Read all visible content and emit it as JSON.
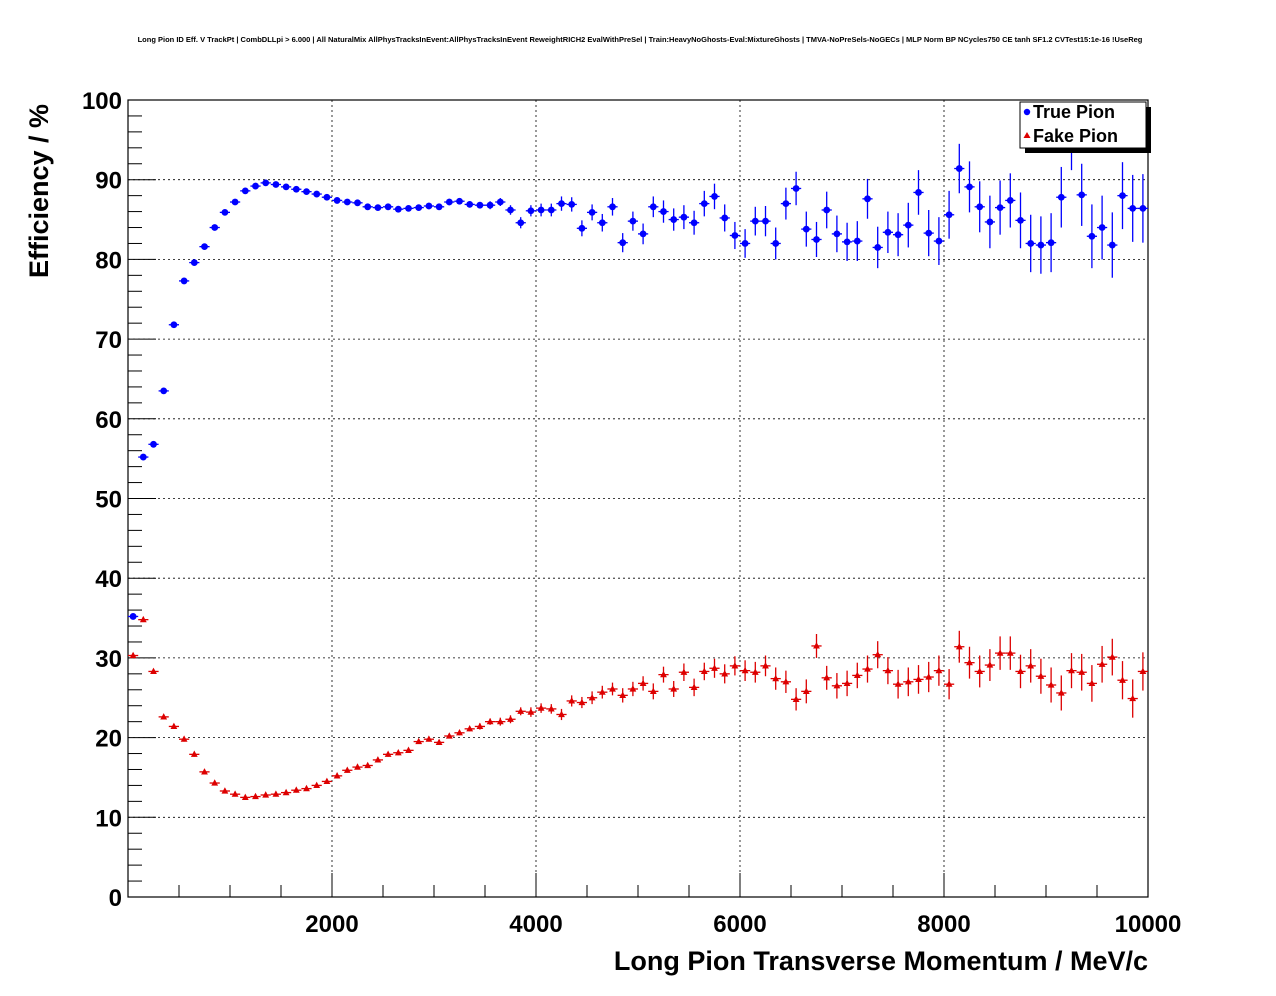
{
  "chart_data": {
    "type": "scatter",
    "title": "Long Pion ID Eff. V TrackPt | CombDLLpi > 6.000 | All NaturalMix AllPhysTracksInEvent:AllPhysTracksInEvent ReweightRICH2 EvalWithPreSel | Train:HeavyNoGhosts-Eval:MixtureGhosts | TMVA-NoPreSels-NoGECs | MLP Norm BP NCycles750 CE tanh SF1.2 CVTest15:1e-16 !UseReg",
    "xlabel": "Long Pion Transverse Momentum / MeV/c",
    "ylabel": "Efficiency / %",
    "xlim": [
      0,
      10000
    ],
    "ylim": [
      0,
      100
    ],
    "xticks": [
      2000,
      4000,
      6000,
      8000,
      10000
    ],
    "yticks": [
      0,
      10,
      20,
      30,
      40,
      50,
      60,
      70,
      80,
      90,
      100
    ],
    "grid": true,
    "legend_position": "top-right",
    "series": [
      {
        "name": "True Pion",
        "color": "#0000ff",
        "marker": "circle",
        "x": [
          50,
          150,
          250,
          350,
          450,
          550,
          650,
          750,
          850,
          950,
          1050,
          1150,
          1250,
          1350,
          1450,
          1550,
          1650,
          1750,
          1850,
          1950,
          2050,
          2150,
          2250,
          2350,
          2450,
          2550,
          2650,
          2750,
          2850,
          2950,
          3050,
          3150,
          3250,
          3350,
          3450,
          3550,
          3650,
          3750,
          3850,
          3950,
          4050,
          4150,
          4250,
          4350,
          4450,
          4550,
          4650,
          4750,
          4850,
          4950,
          5050,
          5150,
          5250,
          5350,
          5450,
          5550,
          5650,
          5750,
          5850,
          5950,
          6050,
          6150,
          6250,
          6350,
          6450,
          6550,
          6650,
          6750,
          6850,
          6950,
          7050,
          7150,
          7250,
          7350,
          7450,
          7550,
          7650,
          7750,
          7850,
          7950,
          8050,
          8150,
          8250,
          8350,
          8450,
          8550,
          8650,
          8750,
          8850,
          8950,
          9050,
          9150,
          9250,
          9350,
          9450,
          9550,
          9650,
          9750,
          9850,
          9950
        ],
        "y": [
          35.2,
          55.2,
          56.8,
          63.5,
          71.8,
          77.3,
          79.6,
          81.6,
          84.0,
          85.9,
          87.2,
          88.6,
          89.2,
          89.6,
          89.4,
          89.1,
          88.8,
          88.5,
          88.2,
          87.8,
          87.4,
          87.2,
          87.1,
          86.6,
          86.5,
          86.6,
          86.3,
          86.4,
          86.5,
          86.7,
          86.6,
          87.2,
          87.3,
          86.9,
          86.8,
          86.8,
          87.2,
          86.2,
          84.6,
          86.1,
          86.2,
          86.2,
          87.0,
          86.9,
          83.9,
          85.9,
          84.6,
          86.6,
          82.1,
          84.8,
          83.2,
          86.6,
          86.0,
          85.0,
          85.3,
          84.6,
          87.0,
          87.9,
          85.2,
          83.0,
          82.0,
          84.8,
          84.8,
          82.0,
          87.0,
          88.9,
          83.8,
          82.5,
          86.2,
          83.2,
          82.2,
          82.3,
          87.6,
          81.5,
          83.4,
          83.1,
          84.3,
          88.4,
          83.3,
          82.3,
          85.6,
          91.4,
          89.1,
          86.6,
          84.7,
          86.5,
          87.4,
          84.9,
          82.0,
          81.8,
          82.1,
          87.8,
          95.0,
          88.1,
          82.9,
          84.0,
          81.8,
          88.0,
          86.4,
          86.4
        ],
        "yerr": [
          0.3,
          0.3,
          0.3,
          0.3,
          0.3,
          0.3,
          0.3,
          0.3,
          0.3,
          0.3,
          0.3,
          0.3,
          0.3,
          0.3,
          0.3,
          0.3,
          0.3,
          0.3,
          0.3,
          0.3,
          0.3,
          0.3,
          0.3,
          0.3,
          0.3,
          0.3,
          0.3,
          0.3,
          0.3,
          0.4,
          0.4,
          0.4,
          0.4,
          0.4,
          0.4,
          0.5,
          0.5,
          0.6,
          0.7,
          0.7,
          0.8,
          0.8,
          0.9,
          0.9,
          1.0,
          1.0,
          1.1,
          1.1,
          1.2,
          1.2,
          1.3,
          1.3,
          1.4,
          1.4,
          1.5,
          1.5,
          1.6,
          1.6,
          1.7,
          1.7,
          1.8,
          1.8,
          1.9,
          2.0,
          2.0,
          2.1,
          2.2,
          2.2,
          2.3,
          2.3,
          2.4,
          2.5,
          2.5,
          2.6,
          2.6,
          2.7,
          2.8,
          2.8,
          2.9,
          3.0,
          3.0,
          3.1,
          3.2,
          3.2,
          3.3,
          3.4,
          3.4,
          3.5,
          3.6,
          3.6,
          3.7,
          3.8,
          3.8,
          3.9,
          4.0,
          4.0,
          4.1,
          4.2,
          4.2,
          4.3
        ]
      },
      {
        "name": "Fake Pion",
        "color": "#dd0000",
        "marker": "triangle",
        "x": [
          50,
          150,
          250,
          350,
          450,
          550,
          650,
          750,
          850,
          950,
          1050,
          1150,
          1250,
          1350,
          1450,
          1550,
          1650,
          1750,
          1850,
          1950,
          2050,
          2150,
          2250,
          2350,
          2450,
          2550,
          2650,
          2750,
          2850,
          2950,
          3050,
          3150,
          3250,
          3350,
          3450,
          3550,
          3650,
          3750,
          3850,
          3950,
          4050,
          4150,
          4250,
          4350,
          4450,
          4550,
          4650,
          4750,
          4850,
          4950,
          5050,
          5150,
          5250,
          5350,
          5450,
          5550,
          5650,
          5750,
          5850,
          5950,
          6050,
          6150,
          6250,
          6350,
          6450,
          6550,
          6650,
          6750,
          6850,
          6950,
          7050,
          7150,
          7250,
          7350,
          7450,
          7550,
          7650,
          7750,
          7850,
          7950,
          8050,
          8150,
          8250,
          8350,
          8450,
          8550,
          8650,
          8750,
          8850,
          8950,
          9050,
          9150,
          9250,
          9350,
          9450,
          9550,
          9650,
          9750,
          9850,
          9950
        ],
        "y": [
          30.3,
          34.8,
          28.3,
          22.6,
          21.4,
          19.8,
          17.9,
          15.7,
          14.3,
          13.3,
          12.9,
          12.5,
          12.6,
          12.8,
          12.9,
          13.1,
          13.4,
          13.6,
          14.0,
          14.5,
          15.2,
          15.9,
          16.3,
          16.5,
          17.2,
          17.9,
          18.1,
          18.4,
          19.5,
          19.8,
          19.4,
          20.2,
          20.6,
          21.1,
          21.4,
          22.0,
          22.0,
          22.3,
          23.3,
          23.2,
          23.7,
          23.6,
          22.9,
          24.6,
          24.4,
          25.0,
          25.7,
          26.1,
          25.3,
          26.1,
          26.8,
          25.8,
          27.9,
          26.1,
          28.2,
          26.3,
          28.3,
          28.7,
          28.0,
          29.0,
          28.4,
          28.2,
          29.0,
          27.4,
          27.0,
          24.8,
          25.8,
          31.5,
          27.5,
          26.5,
          26.8,
          27.8,
          28.6,
          30.4,
          28.4,
          26.7,
          27.0,
          27.3,
          27.6,
          28.4,
          26.7,
          31.4,
          29.4,
          28.3,
          29.1,
          30.6,
          30.6,
          28.3,
          29.0,
          27.7,
          26.6,
          25.6,
          28.4,
          28.2,
          26.8,
          29.2,
          30.1,
          27.2,
          24.9,
          28.3
        ],
        "yerr": [
          0.3,
          0.3,
          0.3,
          0.3,
          0.3,
          0.3,
          0.3,
          0.3,
          0.3,
          0.3,
          0.3,
          0.3,
          0.3,
          0.3,
          0.3,
          0.3,
          0.3,
          0.3,
          0.3,
          0.3,
          0.3,
          0.3,
          0.3,
          0.3,
          0.3,
          0.3,
          0.3,
          0.3,
          0.3,
          0.3,
          0.3,
          0.3,
          0.3,
          0.3,
          0.4,
          0.4,
          0.5,
          0.5,
          0.5,
          0.6,
          0.6,
          0.6,
          0.7,
          0.7,
          0.7,
          0.8,
          0.8,
          0.8,
          0.9,
          0.9,
          0.9,
          1.0,
          1.0,
          1.0,
          1.1,
          1.1,
          1.1,
          1.2,
          1.2,
          1.2,
          1.3,
          1.3,
          1.3,
          1.4,
          1.4,
          1.4,
          1.5,
          1.5,
          1.5,
          1.6,
          1.6,
          1.6,
          1.7,
          1.7,
          1.7,
          1.8,
          1.8,
          1.8,
          1.9,
          1.9,
          1.9,
          2.0,
          2.0,
          2.0,
          2.0,
          2.1,
          2.1,
          2.1,
          2.1,
          2.2,
          2.2,
          2.2,
          2.2,
          2.3,
          2.3,
          2.3,
          2.3,
          2.4,
          2.4,
          2.4
        ]
      }
    ]
  }
}
